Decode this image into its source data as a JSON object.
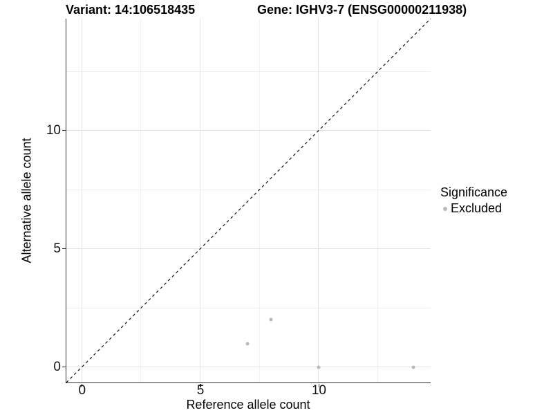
{
  "title": {
    "variant": "Variant: 14:106518435",
    "gene": "Gene: IGHV3-7 (ENSG00000211938)"
  },
  "chart_data": {
    "type": "scatter",
    "xlabel": "Reference allele count",
    "ylabel": "Alternative allele count",
    "xlim": [
      -0.65,
      14.73
    ],
    "ylim": [
      -0.65,
      14.73
    ],
    "xticks": [
      0,
      5,
      10
    ],
    "yticks": [
      0,
      5,
      10
    ],
    "minor_gridlines_x": [
      2.5,
      7.5,
      12.5
    ],
    "minor_gridlines_y": [
      2.5,
      7.5,
      12.5
    ],
    "grid": "major-and-minor",
    "identity_line": {
      "slope": 1,
      "intercept": 0,
      "style": "dashed",
      "color": "#111111"
    },
    "series": [
      {
        "name": "Excluded",
        "color": "#b9b9b9",
        "points": [
          {
            "x": 7,
            "y": 1
          },
          {
            "x": 8,
            "y": 2
          },
          {
            "x": 10,
            "y": 0
          },
          {
            "x": 14,
            "y": 0
          }
        ]
      }
    ],
    "legend": {
      "title": "Significance",
      "position": "right",
      "items": [
        {
          "label": "Excluded",
          "color": "#b9b9b9"
        }
      ]
    }
  },
  "colors": {
    "grid_major": "#e3e3e3",
    "grid_minor": "#f0f0f0",
    "axis_line": "#2e2e2e",
    "tick_text": "#111111",
    "point": "#b9b9b9"
  }
}
